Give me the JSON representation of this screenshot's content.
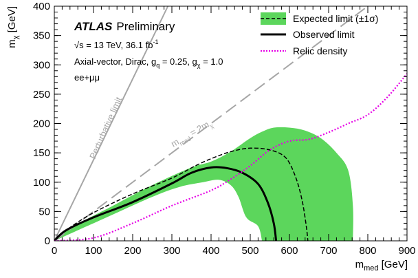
{
  "chart_data": {
    "type": "line",
    "title": "",
    "xlabel_main": "m",
    "xlabel_sub": "med",
    "xlabel_unit": "[GeV]",
    "ylabel_main": "m",
    "ylabel_sub": "χ",
    "ylabel_unit": "[GeV]",
    "xlim": [
      0,
      900
    ],
    "ylim": [
      0,
      400
    ],
    "xticks": [
      0,
      100,
      200,
      300,
      400,
      500,
      600,
      700,
      800,
      900
    ],
    "yticks": [
      0,
      50,
      100,
      150,
      200,
      250,
      300,
      350,
      400
    ],
    "grid": false,
    "legend_position": "top-right",
    "annotations": {
      "atlas": "ATLAS",
      "preliminary": "Preliminary",
      "energy_line": "s = 13 TeV, 36.1 fb",
      "energy_sup": "-1",
      "sqrt_symbol": "√",
      "model_a": "Axial-vector, Dirac, g",
      "model_q": "q",
      "model_b": " = 0.25, g",
      "model_chi": "χ",
      "model_c": " = 1.0",
      "channel": "ee+μμ",
      "perturbative": "Perturbative limit",
      "mmed_m": "m",
      "mmed_sub": "med",
      "mmed_eq": " = 2m",
      "mmed_chi": "χ"
    },
    "series": [
      {
        "name": "Expected limit (±1σ)",
        "kind": "band",
        "color": "#5cd65c",
        "upper": [
          [
            0,
            0
          ],
          [
            50,
            25
          ],
          [
            150,
            60
          ],
          [
            250,
            95
          ],
          [
            350,
            125
          ],
          [
            400,
            135
          ],
          [
            450,
            152
          ],
          [
            500,
            175
          ],
          [
            530,
            186
          ],
          [
            560,
            193
          ],
          [
            600,
            193
          ],
          [
            640,
            188
          ],
          [
            680,
            175
          ],
          [
            720,
            150
          ],
          [
            750,
            120
          ],
          [
            762,
            60
          ],
          [
            762,
            0
          ]
        ],
        "lower": [
          [
            0,
            0
          ],
          [
            50,
            15
          ],
          [
            150,
            45
          ],
          [
            250,
            75
          ],
          [
            320,
            92
          ],
          [
            380,
            100
          ],
          [
            420,
            104
          ],
          [
            450,
            95
          ],
          [
            470,
            75
          ],
          [
            490,
            40
          ],
          [
            520,
            25
          ],
          [
            530,
            0
          ]
        ]
      },
      {
        "name": "Expected limit (±1σ)",
        "kind": "dashed",
        "color": "#000000",
        "points": [
          [
            0,
            0
          ],
          [
            30,
            18
          ],
          [
            100,
            48
          ],
          [
            200,
            80
          ],
          [
            300,
            107
          ],
          [
            360,
            128
          ],
          [
            400,
            140
          ],
          [
            450,
            152
          ],
          [
            500,
            158
          ],
          [
            550,
            155
          ],
          [
            590,
            142
          ],
          [
            615,
            110
          ],
          [
            632,
            70
          ],
          [
            643,
            25
          ],
          [
            647,
            0
          ]
        ]
      },
      {
        "name": "Observed limit",
        "kind": "solid",
        "color": "#000000",
        "points": [
          [
            0,
            0
          ],
          [
            30,
            18
          ],
          [
            100,
            40
          ],
          [
            200,
            66
          ],
          [
            300,
            98
          ],
          [
            350,
            116
          ],
          [
            400,
            125
          ],
          [
            440,
            124
          ],
          [
            480,
            116
          ],
          [
            520,
            97
          ],
          [
            545,
            65
          ],
          [
            560,
            30
          ],
          [
            566,
            0
          ]
        ]
      },
      {
        "name": "Relic density",
        "kind": "dotted",
        "color": "#e600e6",
        "points": [
          [
            0,
            0
          ],
          [
            100,
            5
          ],
          [
            200,
            30
          ],
          [
            300,
            60
          ],
          [
            400,
            86
          ],
          [
            450,
            105
          ],
          [
            500,
            128
          ],
          [
            550,
            155
          ],
          [
            600,
            170
          ],
          [
            650,
            173
          ],
          [
            700,
            185
          ],
          [
            750,
            200
          ],
          [
            800,
            215
          ],
          [
            850,
            245
          ],
          [
            900,
            285
          ]
        ]
      }
    ],
    "reference_lines": [
      {
        "name": "Perturbative limit",
        "color": "#a6a6a6",
        "style": "solid",
        "slope": 1.38
      },
      {
        "name": "m_med = 2m_χ",
        "color": "#a6a6a6",
        "style": "dashed",
        "slope": 0.5
      }
    ]
  }
}
